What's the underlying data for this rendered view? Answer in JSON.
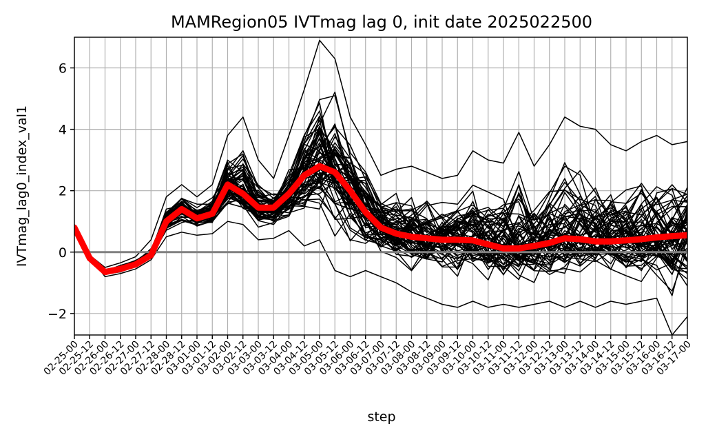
{
  "chart_data": {
    "type": "line",
    "title": "MAMRegion05 IVTmag lag 0, init date 2025022500",
    "xlabel": "step",
    "ylabel": "IVTmag_lag0_index_val1",
    "ylim": [
      -2.7,
      7.0
    ],
    "yticks": [
      -2,
      0,
      2,
      4,
      6
    ],
    "ytick_labels": [
      "−2",
      "0",
      "2",
      "4",
      "6"
    ],
    "grid": true,
    "categories": [
      "02-25-00",
      "02-25-12",
      "02-26-00",
      "02-26-12",
      "02-27-00",
      "02-27-12",
      "02-28-00",
      "02-28-12",
      "03-01-00",
      "03-01-12",
      "03-02-00",
      "03-02-12",
      "03-03-00",
      "03-03-12",
      "03-04-00",
      "03-04-12",
      "03-05-00",
      "03-05-12",
      "03-06-00",
      "03-06-12",
      "03-07-00",
      "03-07-12",
      "03-08-00",
      "03-08-12",
      "03-09-00",
      "03-09-12",
      "03-10-00",
      "03-10-12",
      "03-11-00",
      "03-11-12",
      "03-12-00",
      "03-12-12",
      "03-13-00",
      "03-13-12",
      "03-14-00",
      "03-14-12",
      "03-15-00",
      "03-15-12",
      "03-16-00",
      "03-16-12",
      "03-17-00"
    ],
    "mean_series": {
      "color": "#ff0000",
      "values": [
        0.8,
        -0.2,
        -0.65,
        -0.55,
        -0.4,
        -0.1,
        1.0,
        1.4,
        1.1,
        1.25,
        2.2,
        1.9,
        1.45,
        1.45,
        1.9,
        2.5,
        2.8,
        2.6,
        2.0,
        1.3,
        0.8,
        0.6,
        0.5,
        0.45,
        0.4,
        0.4,
        0.38,
        0.25,
        0.12,
        0.12,
        0.2,
        0.3,
        0.45,
        0.42,
        0.35,
        0.35,
        0.38,
        0.42,
        0.48,
        0.52,
        0.55
      ]
    },
    "ensemble": {
      "color": "#000000",
      "members": 60,
      "spread_low": [
        0.6,
        -0.15,
        -0.8,
        -0.7,
        -0.55,
        -0.25,
        0.5,
        0.65,
        0.55,
        0.6,
        1.0,
        0.9,
        0.4,
        0.45,
        0.7,
        0.2,
        0.4,
        -0.6,
        -0.8,
        -0.6,
        -0.8,
        -1.0,
        -1.3,
        -1.5,
        -1.7,
        -1.8,
        -1.6,
        -1.8,
        -1.7,
        -1.8,
        -1.7,
        -1.6,
        -1.8,
        -1.6,
        -1.8,
        -1.6,
        -1.7,
        -1.6,
        -1.5,
        -2.7,
        -2.1
      ],
      "spread_high": [
        0.9,
        -0.1,
        -0.5,
        -0.35,
        -0.15,
        0.4,
        1.8,
        2.2,
        1.8,
        2.2,
        3.8,
        4.4,
        3.0,
        2.4,
        3.8,
        5.3,
        6.9,
        6.3,
        4.4,
        3.5,
        2.5,
        2.7,
        2.8,
        2.6,
        2.4,
        2.5,
        3.3,
        3.0,
        2.9,
        3.9,
        2.8,
        3.5,
        4.4,
        4.1,
        4.0,
        3.5,
        3.3,
        3.6,
        3.8,
        3.5,
        3.6
      ]
    },
    "zero_line": {
      "value": 0,
      "color": "#808080"
    }
  }
}
